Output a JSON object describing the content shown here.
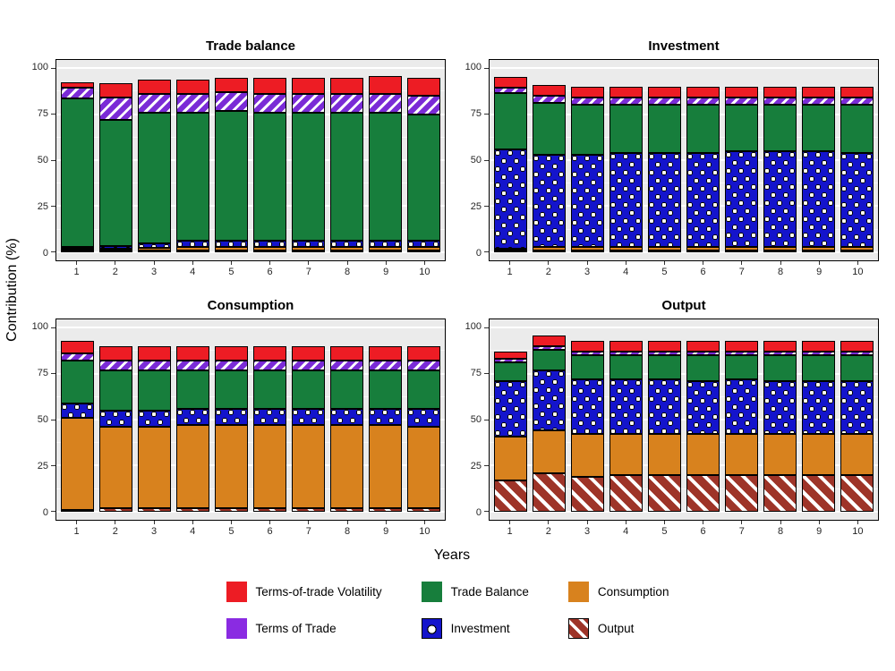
{
  "chart_data": {
    "type": "bar",
    "stacked": true,
    "grid": true,
    "legend_position": "bottom",
    "ylabel": "Contribution (%)",
    "xlabel": "Years",
    "ylim": [
      0,
      100
    ],
    "yticks": [
      0,
      25,
      50,
      75,
      100
    ],
    "categories": [
      "1",
      "2",
      "3",
      "4",
      "5",
      "6",
      "7",
      "8",
      "9",
      "10"
    ],
    "stack_order_bottom_to_top": [
      "Output",
      "Consumption",
      "Investment",
      "Trade Balance",
      "Terms of Trade",
      "Terms-of-trade Volatility"
    ],
    "panels": [
      {
        "title": "Trade balance",
        "series": [
          {
            "name": "Output",
            "key": "output",
            "values": [
              0.5,
              0.5,
              1,
              1,
              1,
              1,
              1,
              1,
              1,
              1
            ]
          },
          {
            "name": "Consumption",
            "key": "consumption",
            "values": [
              1,
              1,
              1.5,
              2,
              2,
              2,
              2,
              2,
              2,
              2
            ]
          },
          {
            "name": "Investment",
            "key": "investment",
            "values": [
              1,
              1.5,
              2.5,
              3,
              3,
              3,
              3,
              3,
              3,
              3
            ]
          },
          {
            "name": "Trade Balance",
            "key": "trade_balance",
            "values": [
              81,
              69,
              71,
              70,
              71,
              70,
              70,
              70,
              70,
              69
            ]
          },
          {
            "name": "Terms of Trade",
            "key": "terms_of_trade",
            "values": [
              6,
              12,
              10,
              10,
              10,
              10,
              10,
              10,
              10,
              10
            ]
          },
          {
            "name": "Terms-of-trade Volatility",
            "key": "volatility",
            "values": [
              3,
              8,
              8,
              8,
              8,
              9,
              9,
              9,
              10,
              10
            ]
          }
        ]
      },
      {
        "title": "Investment",
        "series": [
          {
            "name": "Output",
            "key": "output",
            "values": [
              0.5,
              1,
              1,
              1,
              1,
              1,
              1,
              1,
              1,
              1
            ]
          },
          {
            "name": "Consumption",
            "key": "consumption",
            "values": [
              1,
              2,
              2,
              2,
              2,
              2,
              2,
              2,
              2,
              2
            ]
          },
          {
            "name": "Investment",
            "key": "investment",
            "values": [
              54,
              50,
              50,
              51,
              51,
              51,
              52,
              52,
              52,
              51
            ]
          },
          {
            "name": "Trade Balance",
            "key": "trade_balance",
            "values": [
              31,
              28,
              27,
              26,
              26,
              26,
              25,
              25,
              25,
              26
            ]
          },
          {
            "name": "Terms of Trade",
            "key": "terms_of_trade",
            "values": [
              3,
              4,
              4,
              4,
              4,
              4,
              4,
              4,
              4,
              4
            ]
          },
          {
            "name": "Terms-of-trade Volatility",
            "key": "volatility",
            "values": [
              6,
              6,
              6,
              6,
              6,
              6,
              6,
              6,
              6,
              6
            ]
          }
        ]
      },
      {
        "title": "Consumption",
        "series": [
          {
            "name": "Output",
            "key": "output",
            "values": [
              1,
              2,
              2,
              2,
              2,
              2,
              2,
              2,
              2,
              2
            ]
          },
          {
            "name": "Consumption",
            "key": "consumption",
            "values": [
              50,
              44,
              44,
              45,
              45,
              45,
              45,
              45,
              45,
              44
            ]
          },
          {
            "name": "Investment",
            "key": "investment",
            "values": [
              8,
              9,
              9,
              9,
              9,
              9,
              9,
              9,
              9,
              10
            ]
          },
          {
            "name": "Trade Balance",
            "key": "trade_balance",
            "values": [
              23,
              22,
              22,
              21,
              21,
              21,
              21,
              21,
              21,
              21
            ]
          },
          {
            "name": "Terms of Trade",
            "key": "terms_of_trade",
            "values": [
              4,
              5,
              5,
              5,
              5,
              5,
              5,
              5,
              5,
              5
            ]
          },
          {
            "name": "Terms-of-trade Volatility",
            "key": "volatility",
            "values": [
              7,
              8,
              8,
              8,
              8,
              8,
              8,
              8,
              8,
              8
            ]
          }
        ]
      },
      {
        "title": "Output",
        "series": [
          {
            "name": "Output",
            "key": "output",
            "values": [
              17,
              21,
              19,
              20,
              20,
              20,
              20,
              20,
              20,
              20
            ]
          },
          {
            "name": "Consumption",
            "key": "consumption",
            "values": [
              24,
              23,
              23,
              22,
              22,
              22,
              22,
              22,
              22,
              22
            ]
          },
          {
            "name": "Investment",
            "key": "investment",
            "values": [
              30,
              33,
              30,
              30,
              30,
              29,
              30,
              29,
              29,
              29
            ]
          },
          {
            "name": "Trade Balance",
            "key": "trade_balance",
            "values": [
              10,
              11,
              13,
              13,
              13,
              14,
              13,
              14,
              14,
              14
            ]
          },
          {
            "name": "Terms of Trade",
            "key": "terms_of_trade",
            "values": [
              2,
              2,
              2,
              2,
              2,
              2,
              2,
              2,
              2,
              2
            ]
          },
          {
            "name": "Terms-of-trade Volatility",
            "key": "volatility",
            "values": [
              4,
              6,
              6,
              6,
              6,
              6,
              6,
              6,
              6,
              6
            ]
          }
        ]
      }
    ],
    "legend": {
      "items": [
        {
          "label": "Terms-of-trade Volatility",
          "key": "volatility",
          "color": "#ED1C24",
          "pattern": "solid"
        },
        {
          "label": "Trade Balance",
          "key": "trade_balance",
          "color": "#177E3C",
          "pattern": "solid"
        },
        {
          "label": "Consumption",
          "key": "consumption",
          "color": "#D8821E",
          "pattern": "solid"
        },
        {
          "label": "Terms of Trade",
          "key": "terms_of_trade",
          "color": "#8A2BE2",
          "pattern": "stripe"
        },
        {
          "label": "Investment",
          "key": "investment",
          "color": "#1414CC",
          "pattern": "circle"
        },
        {
          "label": "Output",
          "key": "output",
          "color": "#9E3428",
          "pattern": "stripe"
        }
      ]
    }
  }
}
